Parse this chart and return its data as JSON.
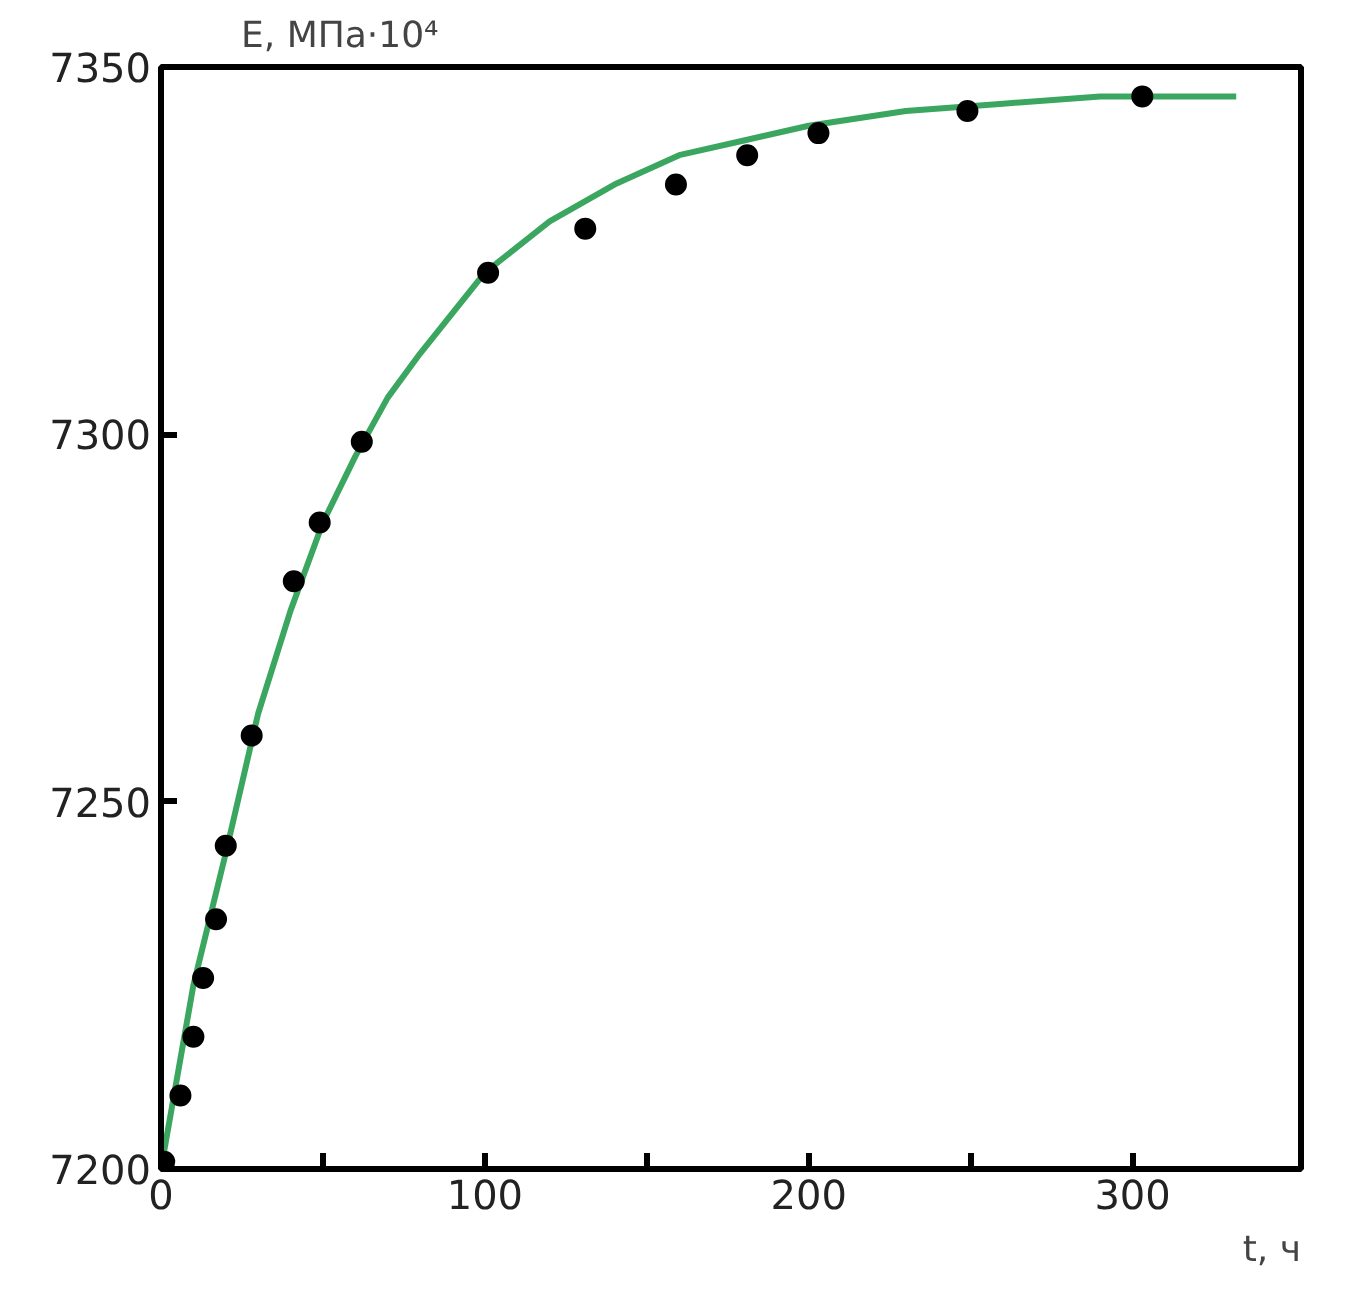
{
  "chart_data": {
    "type": "scatter",
    "xlabel": "t, ч",
    "ylabel": "E, МПа·10⁴",
    "xlim": [
      0,
      352
    ],
    "ylim": [
      7200,
      7350
    ],
    "xticks": [
      0,
      {
        "value": 50,
        "label": null
      },
      100,
      {
        "value": 150,
        "label": null
      },
      200,
      {
        "value": 250,
        "label": null
      },
      300
    ],
    "yticks": [
      7200,
      7250,
      7300,
      7350
    ],
    "grid": false,
    "series": [
      {
        "type": "line",
        "color": "#3aa660",
        "line_style": "solid",
        "marker": "none",
        "x": [
          0,
          10,
          20,
          30,
          40,
          50,
          60,
          70,
          80,
          100,
          120,
          140,
          160,
          180,
          200,
          230,
          260,
          290,
          332
        ],
        "values": [
          7200,
          7225,
          7243,
          7262,
          7276,
          7288,
          7297,
          7305,
          7311,
          7322,
          7329,
          7334,
          7338,
          7340,
          7342,
          7344,
          7345,
          7346,
          7346
        ]
      },
      {
        "color": "#000000",
        "marker": "circle",
        "x": [
          1,
          6,
          10,
          13,
          17,
          20,
          28,
          41,
          49,
          62,
          101,
          131,
          159,
          181,
          203,
          249,
          303
        ],
        "values": [
          7201,
          7210,
          7218,
          7226,
          7234,
          7244,
          7259,
          7280,
          7288,
          7299,
          7322,
          7328,
          7334,
          7338,
          7341,
          7344,
          7346
        ]
      }
    ]
  }
}
